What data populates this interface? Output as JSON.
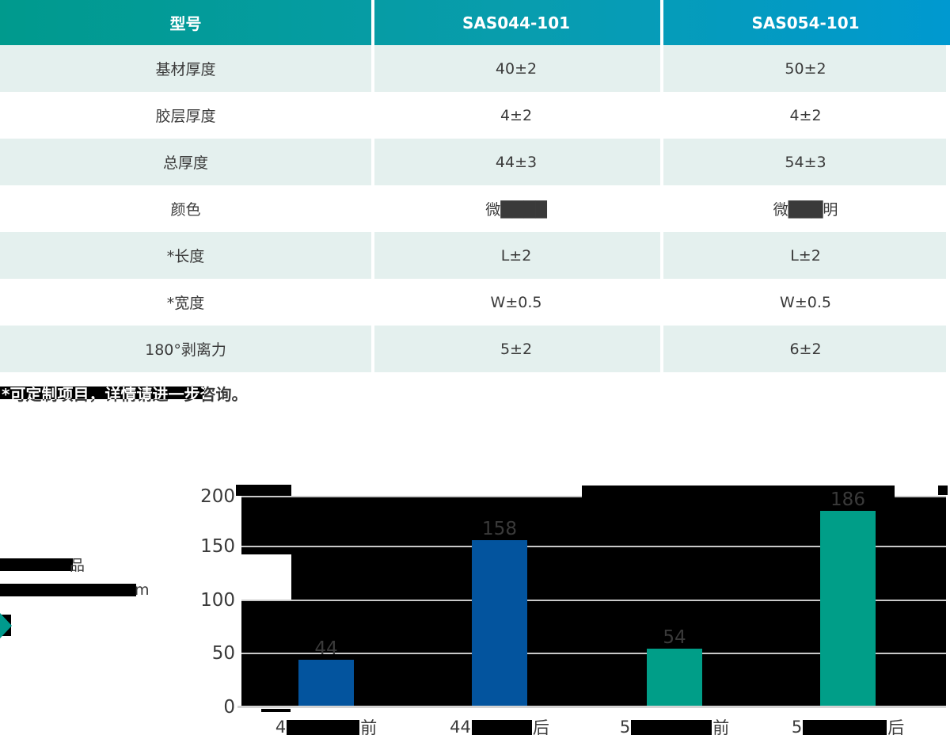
{
  "table": {
    "header": {
      "model": "型号",
      "col1": "SAS044-101",
      "col2": "SAS054-101"
    },
    "rows": [
      {
        "label": "基材厚度",
        "v1": "40±2",
        "v2": "50±2"
      },
      {
        "label": "胶层厚度",
        "v1": "4±2",
        "v2": "4±2"
      },
      {
        "label": "总厚度",
        "v1": "44±3",
        "v2": "54±3"
      },
      {
        "label": "颜色",
        "v1": "微████",
        "v2": "微███明"
      },
      {
        "label": "*长度",
        "v1": "L±2",
        "v2": "L±2"
      },
      {
        "label": "*宽度",
        "v1": "W±0.5",
        "v2": "W±0.5"
      },
      {
        "label": "180°剥离力",
        "v1": "5±2",
        "v2": "6±2"
      }
    ],
    "footnote": "*可定制项目，详情请进一步咨询。"
  },
  "side_notes": {
    "line1_visible": "品",
    "line2_visible": "m"
  },
  "chart_data": {
    "type": "bar",
    "values": [
      44,
      158,
      54,
      186
    ],
    "bar_colors": [
      "#03549e",
      "#03549e",
      "#009e88",
      "#009e88"
    ],
    "yticks": [
      "200",
      "150",
      "100",
      "50",
      "0"
    ],
    "ylim": [
      0,
      200
    ],
    "grid": "horizontal-gridlines-on-black-glitch-background",
    "categories_visible": [
      {
        "prefix": "4",
        "suffix": "前"
      },
      {
        "prefix": "44",
        "suffix": "后"
      },
      {
        "prefix": "5",
        "suffix": "前"
      },
      {
        "prefix": "5",
        "suffix": "后"
      }
    ]
  },
  "colors": {
    "accent_green": "#009a8d",
    "accent_blue": "#0099d0",
    "bar_blue": "#03549e",
    "bar_teal": "#009e88",
    "row_mint": "#e4f0ee",
    "text_dark": "#3a3a3a"
  }
}
